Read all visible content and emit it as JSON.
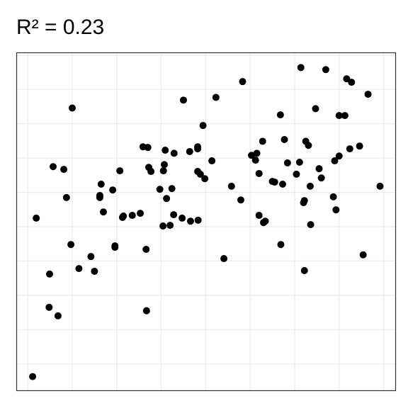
{
  "chart_data": {
    "type": "scatter",
    "title": "R² = 0.23",
    "x": [
      0.11,
      0.19,
      0.49,
      0.48,
      0.68,
      0.57,
      0.81,
      0.87,
      1.0,
      0.97,
      1.15,
      1.42,
      1.5,
      1.65,
      1.62,
      1.62,
      1.7,
      1.91,
      1.96,
      1.96,
      2.07,
      2.13,
      2.15,
      2.35,
      2.53,
      2.59,
      2.7,
      2.72,
      2.77,
      2.66,
      2.67,
      2.97,
      3.04,
      3.09,
      3.07,
      3.05,
      3.12,
      3.2,
      3.24,
      3.28,
      3.29,
      3.47,
      3.5,
      3.64,
      3.66,
      3.82,
      3.82,
      3.82,
      3.83,
      3.88,
      3.98,
      3.94,
      4.14,
      4.23,
      4.41,
      4.58,
      4.79,
      4.83,
      5.03,
      5.12,
      5.15,
      5.2,
      5.2,
      5.28,
      5.3,
      5.34,
      5.5,
      5.55,
      5.68,
      5.73,
      5.69,
      5.77,
      5.84,
      6.04,
      6.11,
      6.14,
      6.22,
      6.2,
      6.22,
      6.25,
      6.31,
      6.35,
      6.36,
      6.47,
      6.55,
      6.6,
      6.7,
      6.87,
      6.9,
      6.93,
      7.0,
      7.0,
      7.13,
      7.17,
      7.24,
      7.28,
      7.46,
      7.54,
      7.65,
      7.92
    ],
    "values": [
      -0.37,
      4.25,
      2.62,
      1.65,
      1.4,
      5.75,
      5.67,
      4.85,
      7.46,
      3.48,
      2.78,
      3.13,
      2.7,
      5.24,
      4.91,
      4.85,
      4.43,
      5.07,
      3.44,
      3.4,
      5.63,
      4.27,
      4.31,
      4.33,
      4.39,
      6.33,
      6.31,
      5.73,
      5.61,
      3.34,
      1.55,
      5.09,
      4.02,
      6.23,
      5.81,
      5.63,
      4.82,
      4.04,
      5.11,
      4.35,
      6.14,
      4.25,
      7.69,
      6.19,
      4.16,
      6.33,
      6.27,
      5.61,
      4.19,
      5.53,
      5.4,
      6.95,
      5.92,
      7.77,
      3.07,
      5.18,
      4.78,
      8.23,
      6.08,
      5.94,
      6.14,
      5.55,
      4.33,
      6.49,
      4.12,
      4.16,
      5.32,
      5.3,
      7.26,
      5.24,
      3.48,
      6.54,
      5.86,
      5.53,
      5.88,
      8.64,
      4.76,
      4.7,
      2.72,
      6.49,
      6.37,
      5.18,
      4.06,
      7.44,
      5.69,
      5.42,
      8.58,
      4.87,
      5.92,
      4.49,
      6.06,
      7.24,
      7.24,
      8.31,
      6.27,
      8.21,
      6.35,
      3.18,
      7.86,
      5.18
    ],
    "color": "#000000",
    "xlim": [
      -0.25,
      8.27
    ],
    "ylim": [
      -0.78,
      9.07
    ],
    "xticks": [
      0,
      1,
      2,
      3,
      4,
      5,
      6,
      7,
      8
    ],
    "yticks": [
      0,
      1,
      2,
      3,
      4,
      5,
      6,
      7,
      8,
      9
    ],
    "grid": true
  }
}
